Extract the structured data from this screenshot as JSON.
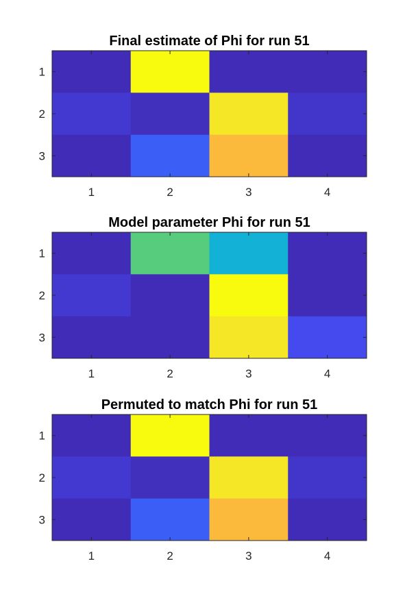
{
  "chart_data": [
    {
      "type": "heatmap",
      "title": "Final estimate of Phi for run 51",
      "x_ticks": [
        "1",
        "2",
        "3",
        "4"
      ],
      "y_ticks": [
        "1",
        "2",
        "3"
      ],
      "colormap": "parula",
      "clim": [
        0,
        1
      ],
      "values": [
        [
          0.02,
          1.0,
          0.02,
          0.02
        ],
        [
          0.06,
          0.03,
          0.93,
          0.05
        ],
        [
          0.02,
          0.16,
          0.8,
          0.02
        ]
      ]
    },
    {
      "type": "heatmap",
      "title": "Model parameter Phi for run 51",
      "x_ticks": [
        "1",
        "2",
        "3",
        "4"
      ],
      "y_ticks": [
        "1",
        "2",
        "3"
      ],
      "colormap": "parula",
      "clim": [
        0,
        1
      ],
      "values": [
        [
          0.02,
          0.55,
          0.4,
          0.02
        ],
        [
          0.06,
          0.02,
          1.0,
          0.02
        ],
        [
          0.02,
          0.02,
          0.93,
          0.11
        ]
      ]
    },
    {
      "type": "heatmap",
      "title": "Permuted to match Phi for run 51",
      "x_ticks": [
        "1",
        "2",
        "3",
        "4"
      ],
      "y_ticks": [
        "1",
        "2",
        "3"
      ],
      "colormap": "parula",
      "clim": [
        0,
        1
      ],
      "values": [
        [
          0.02,
          1.0,
          0.02,
          0.02
        ],
        [
          0.06,
          0.03,
          0.93,
          0.05
        ],
        [
          0.02,
          0.16,
          0.8,
          0.02
        ]
      ]
    }
  ]
}
